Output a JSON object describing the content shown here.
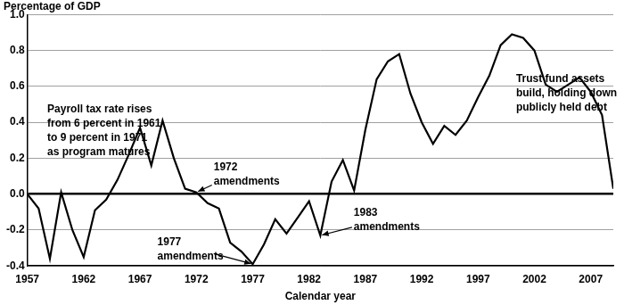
{
  "chart_data": {
    "type": "line",
    "y_label": "Percentage of GDP",
    "x_label": "Calendar year",
    "color": "#000000",
    "grid": true,
    "x": [
      1957,
      1958,
      1959,
      1960,
      1961,
      1962,
      1963,
      1964,
      1965,
      1966,
      1967,
      1968,
      1969,
      1970,
      1971,
      1972,
      1973,
      1974,
      1975,
      1976,
      1977,
      1978,
      1979,
      1980,
      1981,
      1982,
      1983,
      1984,
      1985,
      1986,
      1987,
      1988,
      1989,
      1990,
      1991,
      1992,
      1993,
      1994,
      1995,
      1996,
      1997,
      1998,
      1999,
      2000,
      2001,
      2002,
      2003,
      2004,
      2005,
      2006,
      2007,
      2008,
      2009
    ],
    "values": [
      0.0,
      -0.08,
      -0.36,
      0.01,
      -0.2,
      -0.35,
      -0.09,
      -0.03,
      0.08,
      0.22,
      0.37,
      0.16,
      0.41,
      0.2,
      0.03,
      0.01,
      -0.05,
      -0.08,
      -0.27,
      -0.32,
      -0.39,
      -0.28,
      -0.14,
      -0.22,
      -0.13,
      -0.04,
      -0.23,
      0.07,
      0.19,
      0.02,
      0.36,
      0.64,
      0.74,
      0.78,
      0.56,
      0.4,
      0.28,
      0.38,
      0.33,
      0.41,
      0.54,
      0.66,
      0.83,
      0.89,
      0.87,
      0.8,
      0.61,
      0.57,
      0.61,
      0.65,
      0.57,
      0.44,
      0.03
    ],
    "xlim": [
      1957,
      2009
    ],
    "xticks": [
      1957,
      1962,
      1967,
      1972,
      1977,
      1982,
      1987,
      1992,
      1997,
      2002,
      2007
    ],
    "ylim": [
      -0.4,
      1.0
    ],
    "yticks": [
      -0.4,
      -0.2,
      {
        "value": 0,
        "label": "0.0"
      },
      0.2,
      0.4,
      0.6,
      0.8,
      {
        "value": 1,
        "label": "1.0"
      }
    ],
    "annotations": [
      {
        "text": [
          "Payroll tax rate rises",
          "from 6 percent in 1961",
          "to 9 percent in 1971",
          "as program matures"
        ]
      },
      {
        "text": [
          "Trust fund assets",
          "build, holding down",
          "publicly held debt"
        ]
      },
      {
        "text": [
          "1972",
          "amendments"
        ],
        "x": 1972
      },
      {
        "text": [
          "1977",
          "amendments"
        ],
        "x": 1977
      },
      {
        "text": [
          "1983",
          "amendments"
        ],
        "x": 1983
      }
    ]
  }
}
